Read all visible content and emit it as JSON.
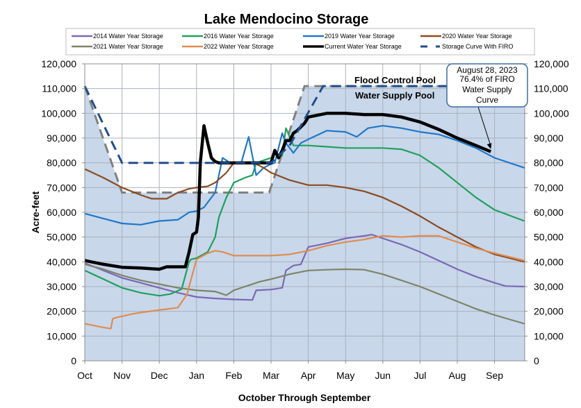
{
  "chart_data": {
    "type": "line",
    "title": "Lake Mendocino Storage",
    "xlabel": "October Through September",
    "ylabel": "Acre-feet",
    "x_units": "months since Oct 1",
    "xlim": [
      0,
      11.8
    ],
    "ylim": [
      0,
      120000
    ],
    "grid": true,
    "legend_position": "top",
    "x_ticks": [
      "Oct",
      "Nov",
      "Dec",
      "Jan",
      "Feb",
      "Mar",
      "Apr",
      "May",
      "Jun",
      "Jul",
      "Aug",
      "Sep"
    ],
    "y_ticks": [
      "0",
      "10,000",
      "20,000",
      "30,000",
      "40,000",
      "50,000",
      "60,000",
      "70,000",
      "80,000",
      "90,000",
      "100,000",
      "110,000",
      "120,000"
    ],
    "y_tick_values": [
      0,
      10000,
      20000,
      30000,
      40000,
      50000,
      60000,
      70000,
      80000,
      90000,
      100000,
      110000,
      120000
    ],
    "pool_labels": {
      "flood": "Flood Control Pool",
      "supply": "Water Supply Pool"
    },
    "annotation": {
      "lines": [
        "August 28, 2023",
        "76.4% of FIRO",
        "Water Supply",
        "Curve"
      ],
      "x": 10.9,
      "y": 85000
    },
    "water_supply_curve": {
      "x": [
        0,
        1,
        2,
        3,
        4,
        4.95,
        5.9,
        6.0,
        11.8
      ],
      "y": [
        111000,
        68000,
        68000,
        68000,
        68000,
        68000,
        111000,
        111000,
        111000
      ]
    },
    "series": [
      {
        "name": "2014 Water Year Storage",
        "color": "#7b68b5",
        "style": "solid",
        "x": [
          0,
          0.5,
          1,
          1.5,
          2,
          2.5,
          3,
          3.5,
          4,
          4.5,
          4.6,
          5,
          5.3,
          5.4,
          5.6,
          5.8,
          6,
          6.5,
          7,
          7.5,
          7.7,
          8,
          8.5,
          9,
          9.5,
          10,
          10.5,
          11,
          11.3,
          11.8
        ],
        "y": [
          39500,
          36500,
          33500,
          31500,
          29500,
          27500,
          25800,
          25200,
          24800,
          24600,
          28500,
          28800,
          29500,
          36500,
          38500,
          39000,
          46000,
          47500,
          49500,
          50500,
          51000,
          49500,
          47000,
          44000,
          40500,
          37000,
          34000,
          31500,
          30200,
          30000
        ]
      },
      {
        "name": "2016 Water Year Storage",
        "color": "#1fa05b",
        "style": "solid",
        "x": [
          0,
          0.5,
          1,
          1.5,
          2,
          2.3,
          2.6,
          2.8,
          2.85,
          3,
          3.3,
          3.5,
          3.6,
          3.7,
          3.8,
          4,
          4.3,
          4.5,
          4.6,
          4.8,
          5,
          5.1,
          5.3,
          5.4,
          5.6,
          6,
          6.5,
          7,
          7.5,
          8,
          8.5,
          9,
          9.5,
          10,
          10.5,
          11,
          11.8
        ],
        "y": [
          36500,
          33000,
          29500,
          27500,
          26300,
          27000,
          29000,
          40000,
          41000,
          41500,
          44000,
          50000,
          58000,
          62000,
          66000,
          72000,
          74000,
          75000,
          80000,
          81000,
          82000,
          84000,
          83000,
          94000,
          87000,
          87000,
          86500,
          86000,
          86000,
          86000,
          85500,
          83000,
          78000,
          72000,
          66000,
          61000,
          56500
        ]
      },
      {
        "name": "2019 Water Year Storage",
        "color": "#1f77c9",
        "style": "solid",
        "x": [
          0,
          0.5,
          1,
          1.5,
          2,
          2.5,
          2.8,
          3,
          3.2,
          3.5,
          3.7,
          3.9,
          4.2,
          4.4,
          4.6,
          4.8,
          5,
          5.1,
          5.3,
          5.4,
          5.6,
          5.8,
          6,
          6.5,
          7,
          7.3,
          7.6,
          8,
          8.5,
          9,
          9.5,
          10,
          10.5,
          11,
          11.8
        ],
        "y": [
          59500,
          57500,
          55500,
          55000,
          56500,
          57000,
          60000,
          60500,
          62000,
          68000,
          82000,
          80000,
          80000,
          90500,
          75000,
          78000,
          79500,
          80000,
          92000,
          88000,
          84000,
          88000,
          89500,
          93000,
          92500,
          90500,
          94000,
          95000,
          94000,
          92500,
          91500,
          89000,
          86000,
          82000,
          78000
        ]
      },
      {
        "name": "2020 Water Year Storage",
        "color": "#8b4a1f",
        "style": "solid",
        "x": [
          0,
          0.5,
          1,
          1.5,
          1.8,
          2.2,
          2.5,
          2.8,
          3,
          3.3,
          3.5,
          3.8,
          4,
          4.2,
          4.4,
          4.6,
          4.8,
          5,
          5.5,
          6,
          6.5,
          7,
          7.5,
          8,
          8.5,
          9,
          9.5,
          10,
          10.5,
          11,
          11.8
        ],
        "y": [
          77500,
          74000,
          70000,
          67000,
          65500,
          65500,
          68000,
          69500,
          70000,
          70500,
          72000,
          76000,
          80000,
          80000,
          80000,
          79500,
          78000,
          76000,
          73000,
          71000,
          71000,
          70000,
          68500,
          66000,
          62500,
          58500,
          54000,
          50000,
          46000,
          43000,
          40000
        ]
      },
      {
        "name": "2021 Water Year Storage",
        "color": "#7d8466",
        "style": "solid",
        "x": [
          0,
          0.5,
          1,
          1.5,
          2,
          2.5,
          3,
          3.5,
          3.8,
          4,
          4.3,
          4.7,
          5,
          5.5,
          6,
          6.5,
          7,
          7.5,
          8,
          8.5,
          9,
          9.5,
          10,
          10.5,
          11,
          11.8
        ],
        "y": [
          39000,
          37000,
          34500,
          32500,
          31000,
          29500,
          28500,
          28000,
          26500,
          28500,
          30000,
          32000,
          33000,
          35000,
          36500,
          36800,
          37000,
          36800,
          35000,
          32500,
          30000,
          27000,
          24000,
          21000,
          18500,
          15000
        ]
      },
      {
        "name": "2022 Water Year Storage",
        "color": "#e08c4f",
        "style": "solid",
        "x": [
          0,
          0.5,
          0.7,
          0.75,
          0.85,
          1,
          1.3,
          1.5,
          2,
          2.5,
          2.75,
          2.8,
          3,
          3.3,
          3.5,
          3.7,
          4,
          4.5,
          5,
          5.5,
          6,
          6.5,
          7,
          7.5,
          8,
          8.5,
          9,
          9.5,
          10,
          10.5,
          11,
          11.8
        ],
        "y": [
          15000,
          13500,
          13000,
          17000,
          17500,
          18000,
          19000,
          19500,
          20500,
          21500,
          27000,
          30000,
          41000,
          43500,
          44500,
          44000,
          42500,
          42500,
          42500,
          43000,
          44500,
          46500,
          48000,
          49000,
          50500,
          50000,
          50500,
          50500,
          48000,
          45500,
          43500,
          40500
        ]
      },
      {
        "name": "Current Water Year Storage",
        "color": "#000000",
        "style": "bold",
        "x": [
          0,
          0.5,
          1,
          1.5,
          2,
          2.2,
          2.4,
          2.7,
          2.8,
          2.9,
          3,
          3.05,
          3.1,
          3.2,
          3.3,
          3.4,
          3.5,
          3.6,
          3.8,
          4,
          4.5,
          5,
          5.1,
          5.2,
          5.3,
          5.4,
          5.5,
          5.6,
          5.7,
          5.9,
          6,
          6.5,
          7,
          7.5,
          8,
          8.5,
          9,
          9.5,
          10,
          10.5,
          10.9
        ],
        "y": [
          40500,
          39000,
          37800,
          37500,
          37000,
          38000,
          38000,
          38000,
          44000,
          51000,
          52000,
          58000,
          80000,
          95000,
          88000,
          82000,
          80500,
          80000,
          80000,
          80000,
          80000,
          80000,
          85000,
          82000,
          85000,
          89000,
          89000,
          92000,
          93000,
          96000,
          98500,
          100000,
          100000,
          99500,
          99500,
          98500,
          96500,
          93500,
          90000,
          87000,
          84500
        ]
      }
    ],
    "firo_curve": {
      "name": "Storage Curve With FIRO",
      "color": "#1f4e8c",
      "style": "dashed",
      "x": [
        0,
        1,
        2,
        3,
        4,
        5,
        5.5,
        6.4,
        6.5,
        11.8
      ],
      "y": [
        111000,
        80000,
        80000,
        80000,
        80000,
        80000,
        87000,
        111000,
        111000,
        111000
      ]
    }
  }
}
